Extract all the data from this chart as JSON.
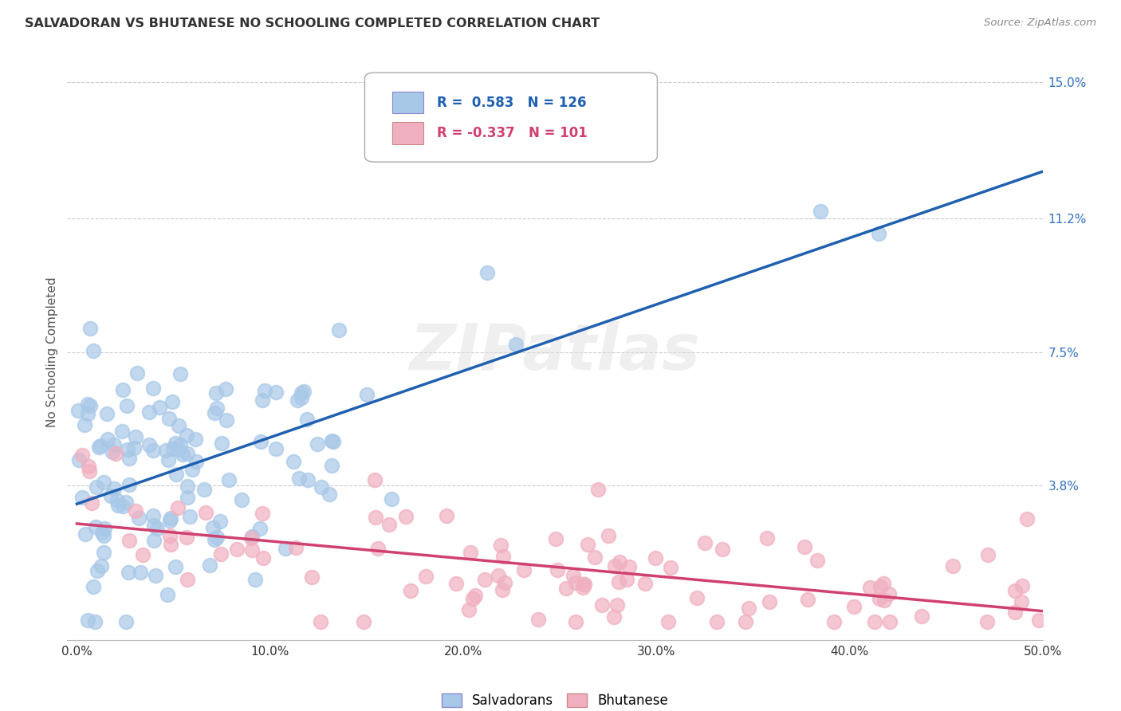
{
  "title": "SALVADORAN VS BHUTANESE NO SCHOOLING COMPLETED CORRELATION CHART",
  "source": "Source: ZipAtlas.com",
  "ylabel": "No Schooling Completed",
  "xlim": [
    0.0,
    0.5
  ],
  "ylim": [
    -0.005,
    0.155
  ],
  "yticks": [
    0.038,
    0.075,
    0.112,
    0.15
  ],
  "ytick_labels": [
    "3.8%",
    "7.5%",
    "11.2%",
    "15.0%"
  ],
  "xticks": [
    0.0,
    0.1,
    0.2,
    0.3,
    0.4,
    0.5
  ],
  "xtick_labels": [
    "0.0%",
    "10.0%",
    "20.0%",
    "30.0%",
    "40.0%",
    "50.0%"
  ],
  "salvadoran_color": "#a8c8e8",
  "bhutanese_color": "#f0b0c0",
  "line_salvadoran_color": "#2060b0",
  "line_bhutanese_color": "#d04070",
  "salvadoran_R": 0.583,
  "salvadoran_N": 126,
  "bhutanese_R": -0.337,
  "bhutanese_N": 101,
  "legend_label_salvadoran": "Salvadorans",
  "legend_label_bhutanese": "Bhutanese",
  "watermark": "ZIPatlas",
  "background_color": "#ffffff",
  "grid_color": "#cccccc",
  "title_color": "#333333",
  "axis_label_color": "#555555",
  "right_tick_color": "#3070c0",
  "source_color": "#888888"
}
